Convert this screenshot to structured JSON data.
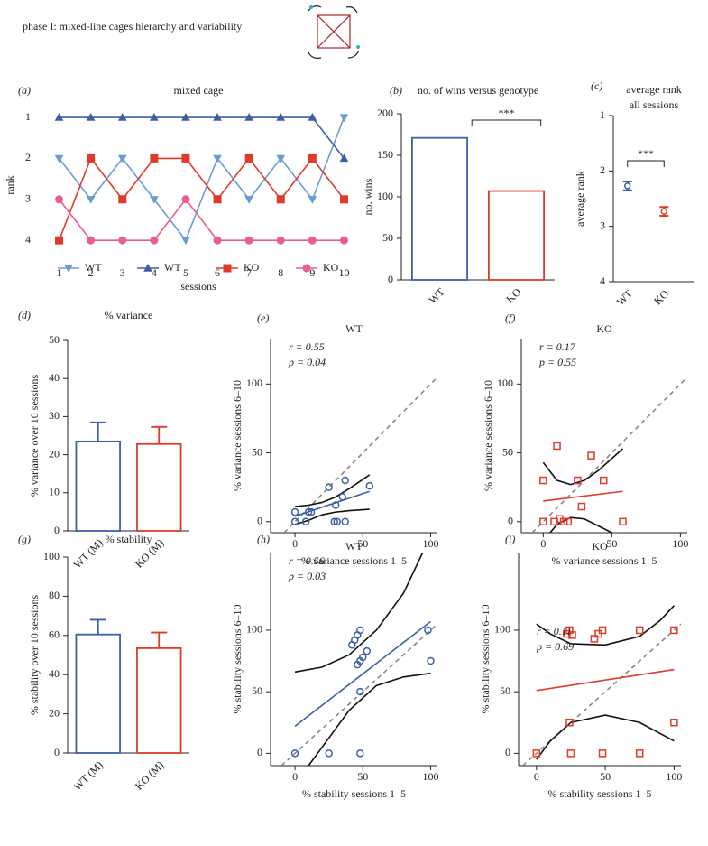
{
  "header": {
    "title": "phase I: mixed-line cages hierarchy and variability"
  },
  "chart_data": [
    {
      "type": "line",
      "panel": "(a)",
      "title": "mixed cage",
      "xlabel": "sessions",
      "ylabel": "rank",
      "x": [
        1,
        2,
        3,
        4,
        5,
        6,
        7,
        8,
        9,
        10
      ],
      "xlim": [
        0.5,
        10.3
      ],
      "xticks": [
        1,
        2,
        3,
        4,
        5,
        6,
        7,
        8,
        9,
        10
      ],
      "ylim": [
        4.57,
        0.735
      ],
      "yticks": [
        1,
        2,
        3,
        4
      ],
      "legend": "lower center",
      "series": [
        {
          "name": "WT",
          "color": "#6b9bd6",
          "marker": "triangle-down",
          "values": [
            2,
            3,
            2,
            3,
            4,
            2,
            3,
            2,
            3,
            1
          ]
        },
        {
          "name": "WT",
          "color": "#3d5fa8",
          "marker": "triangle-up",
          "values": [
            1,
            1,
            1,
            1,
            1,
            1,
            1,
            1,
            1,
            2
          ]
        },
        {
          "name": "KO",
          "color": "#e03a2a",
          "marker": "square",
          "values": [
            4,
            2,
            3,
            2,
            2,
            3,
            2,
            3,
            2,
            3
          ]
        },
        {
          "name": "KO",
          "color": "#e8608a",
          "marker": "circle",
          "values": [
            3,
            4,
            4,
            4,
            3,
            4,
            4,
            4,
            4,
            4
          ]
        }
      ]
    },
    {
      "type": "bar",
      "panel": "(b)",
      "title": "no. of wins versus genotype",
      "ylabel": "no. wins",
      "categories": [
        "WT",
        "KO"
      ],
      "values": [
        171,
        107
      ],
      "colors": [
        "#3d5fa8",
        "#e03a2a"
      ],
      "ylim": [
        0,
        200
      ],
      "yticks": [
        0,
        50,
        100,
        150,
        200
      ],
      "annotation": "***"
    },
    {
      "type": "dot",
      "panel": "(c)",
      "title": [
        "average rank",
        "all sessions"
      ],
      "ylabel": "average rank",
      "categories": [
        "WT",
        "KO"
      ],
      "values": [
        2.27,
        2.73
      ],
      "errors": [
        0.08,
        0.08
      ],
      "colors": [
        "#3d5fa8",
        "#e03a2a"
      ],
      "ylim": [
        4,
        1
      ],
      "yticks": [
        1,
        2,
        3,
        4
      ],
      "annotation": "***"
    },
    {
      "type": "bar",
      "panel": "(d)",
      "title": "% variance",
      "ylabel": "% variance over 10 sessions",
      "categories": [
        "WT (M)",
        "KO (M)"
      ],
      "values": [
        23.5,
        22.8
      ],
      "errors": [
        5,
        4.5
      ],
      "colors": [
        "#3d5fa8",
        "#e03a2a"
      ],
      "ylim": [
        0,
        50
      ],
      "yticks": [
        0,
        10,
        20,
        30,
        40,
        50
      ]
    },
    {
      "type": "scatter",
      "panel": "(e)",
      "title": "WT",
      "xlabel": "% variance sessions 1–5",
      "ylabel": "% variance sessions 6–10",
      "annotations": [
        "r = 0.55",
        "p = 0.04"
      ],
      "color": "#3d5fa8",
      "marker": "circle",
      "x": [
        0,
        0,
        8,
        10,
        12,
        25,
        29,
        31,
        30,
        35,
        37,
        37,
        55
      ],
      "y": [
        7,
        0,
        0,
        7,
        7,
        25,
        0,
        0,
        12,
        18,
        0,
        30,
        26
      ],
      "fit": {
        "x": [
          0,
          55
        ],
        "y": [
          4,
          22
        ]
      },
      "ci_upper": {
        "x": [
          0,
          10,
          20,
          30,
          40,
          55
        ],
        "y": [
          11,
          12,
          14,
          18,
          24,
          34
        ]
      },
      "ci_lower": {
        "x": [
          0,
          10,
          20,
          30,
          40,
          55
        ],
        "y": [
          -2,
          1,
          5,
          7,
          8,
          9
        ]
      },
      "xlim": [
        -18,
        105
      ],
      "xticks": [
        0,
        50,
        100
      ],
      "ylim": [
        -8,
        133
      ],
      "yticks": [
        0,
        50,
        100
      ]
    },
    {
      "type": "scatter",
      "panel": "(f)",
      "title": "KO",
      "xlabel": "% variance sessions 1–5",
      "ylabel": "% variance sessions 6–10",
      "annotations": [
        "r = 0.17",
        "p = 0.55"
      ],
      "color": "#e03a2a",
      "marker": "square",
      "x": [
        0,
        0,
        8,
        10,
        12,
        15,
        18,
        25,
        28,
        35,
        44,
        58
      ],
      "y": [
        30,
        0,
        0,
        55,
        2,
        0,
        0,
        30,
        11,
        48,
        30,
        0
      ],
      "fit": {
        "x": [
          0,
          58
        ],
        "y": [
          15,
          22
        ]
      },
      "ci_upper": {
        "x": [
          0,
          10,
          20,
          30,
          40,
          58
        ],
        "y": [
          43,
          30,
          27,
          30,
          37,
          53
        ]
      },
      "ci_lower": {
        "x": [
          0,
          10,
          20,
          30,
          40,
          58
        ],
        "y": [
          -14,
          -2,
          3,
          2,
          -3,
          -12
        ]
      },
      "xlim": [
        -16,
        105
      ],
      "xticks": [
        0,
        50,
        100
      ],
      "ylim": [
        -8,
        133
      ],
      "yticks": [
        0,
        50,
        100
      ]
    },
    {
      "type": "bar",
      "panel": "(g)",
      "title": "% stability",
      "ylabel": "% stability  over 10 sessions",
      "categories": [
        "WT (M)",
        "KO (M)"
      ],
      "values": [
        60.5,
        53.5
      ],
      "errors": [
        7.5,
        8
      ],
      "colors": [
        "#3d5fa8",
        "#e03a2a"
      ],
      "ylim": [
        0,
        100
      ],
      "yticks": [
        0,
        20,
        40,
        60,
        80,
        100
      ]
    },
    {
      "type": "scatter",
      "panel": "(h)",
      "title": "WT",
      "xlabel": "% stability sessions 1–5",
      "ylabel": "% stability sessions 6–10",
      "annotations": [
        "r = 0.56",
        "p = 0.03"
      ],
      "color": "#3d5fa8",
      "marker": "circle",
      "x": [
        0,
        25,
        48,
        48,
        42,
        44,
        46,
        48,
        46,
        48,
        50,
        53,
        98,
        100
      ],
      "y": [
        0,
        0,
        0,
        50,
        88,
        92,
        96,
        100,
        72,
        75,
        78,
        83,
        100,
        75
      ],
      "fit": {
        "x": [
          0,
          100
        ],
        "y": [
          22,
          107
        ]
      },
      "ci_upper": {
        "x": [
          0,
          20,
          40,
          60,
          80,
          95
        ],
        "y": [
          66,
          70,
          80,
          100,
          130,
          165
        ]
      },
      "ci_lower": {
        "x": [
          10,
          20,
          30,
          40,
          60,
          80,
          100
        ],
        "y": [
          -10,
          5,
          20,
          35,
          55,
          62,
          65
        ]
      },
      "xlim": [
        -18,
        105
      ],
      "xticks": [
        0,
        50,
        100
      ],
      "ylim": [
        -10,
        163
      ],
      "yticks": [
        0,
        50,
        100
      ]
    },
    {
      "type": "scatter",
      "panel": "(i)",
      "title": "KO",
      "xlabel": "% stability sessions 1–5",
      "ylabel": "% stability sessions 6–10",
      "annotations": [
        "r = 0.11",
        "p = 0.69"
      ],
      "color": "#e03a2a",
      "marker": "square",
      "x": [
        0,
        22,
        24,
        26,
        24,
        25,
        42,
        45,
        48,
        48,
        75,
        75,
        100,
        100
      ],
      "y": [
        0,
        97,
        100,
        96,
        25,
        0,
        93,
        97,
        100,
        0,
        100,
        0,
        100,
        25
      ],
      "fit": {
        "x": [
          0,
          100
        ],
        "y": [
          51,
          68
        ]
      },
      "ci_upper": {
        "x": [
          0,
          10,
          25,
          50,
          75,
          90,
          100
        ],
        "y": [
          105,
          97,
          89,
          88,
          95,
          108,
          120
        ]
      },
      "ci_lower": {
        "x": [
          0,
          10,
          25,
          50,
          75,
          100
        ],
        "y": [
          -5,
          10,
          25,
          31,
          25,
          10
        ]
      },
      "xlim": [
        -13,
        105
      ],
      "xticks": [
        0,
        50,
        100
      ],
      "ylim": [
        -10,
        163
      ],
      "yticks": [
        0,
        50,
        100
      ]
    }
  ]
}
